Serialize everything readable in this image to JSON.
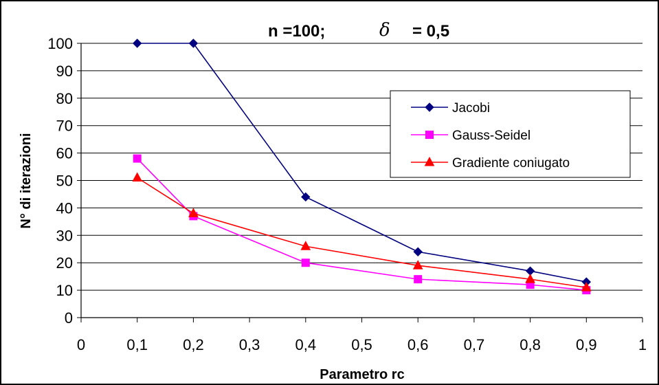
{
  "chart_data": {
    "type": "line",
    "title_prefix": "n =100;",
    "title_symbol": "δ",
    "title_suffix": "= 0,5",
    "xlabel": "Parametro rc",
    "ylabel": "N° di iterazioni",
    "xlim": [
      0,
      1
    ],
    "ylim": [
      0,
      100
    ],
    "x_ticks": [
      "0",
      "0,1",
      "0,2",
      "0,3",
      "0,4",
      "0,5",
      "0,6",
      "0,7",
      "0,8",
      "0,9",
      "1"
    ],
    "y_ticks": [
      "0",
      "10",
      "20",
      "30",
      "40",
      "50",
      "60",
      "70",
      "80",
      "90",
      "100"
    ],
    "grid": "horizontal",
    "legend_position": "right",
    "series": [
      {
        "name": "Jacobi",
        "color": "#000080",
        "marker": "diamond",
        "x": [
          0.1,
          0.2,
          0.4,
          0.6,
          0.8,
          0.9
        ],
        "y": [
          100,
          100,
          44,
          24,
          17,
          13
        ]
      },
      {
        "name": "Gauss-Seidel",
        "color": "#ff00ff",
        "marker": "square",
        "x": [
          0.1,
          0.2,
          0.4,
          0.6,
          0.8,
          0.9
        ],
        "y": [
          58,
          37,
          20,
          14,
          12,
          10
        ]
      },
      {
        "name": "Gradiente coniugato",
        "color": "#ff0000",
        "marker": "triangle",
        "x": [
          0.1,
          0.2,
          0.4,
          0.6,
          0.8,
          0.9
        ],
        "y": [
          51,
          38,
          26,
          19,
          14,
          11
        ]
      }
    ]
  }
}
